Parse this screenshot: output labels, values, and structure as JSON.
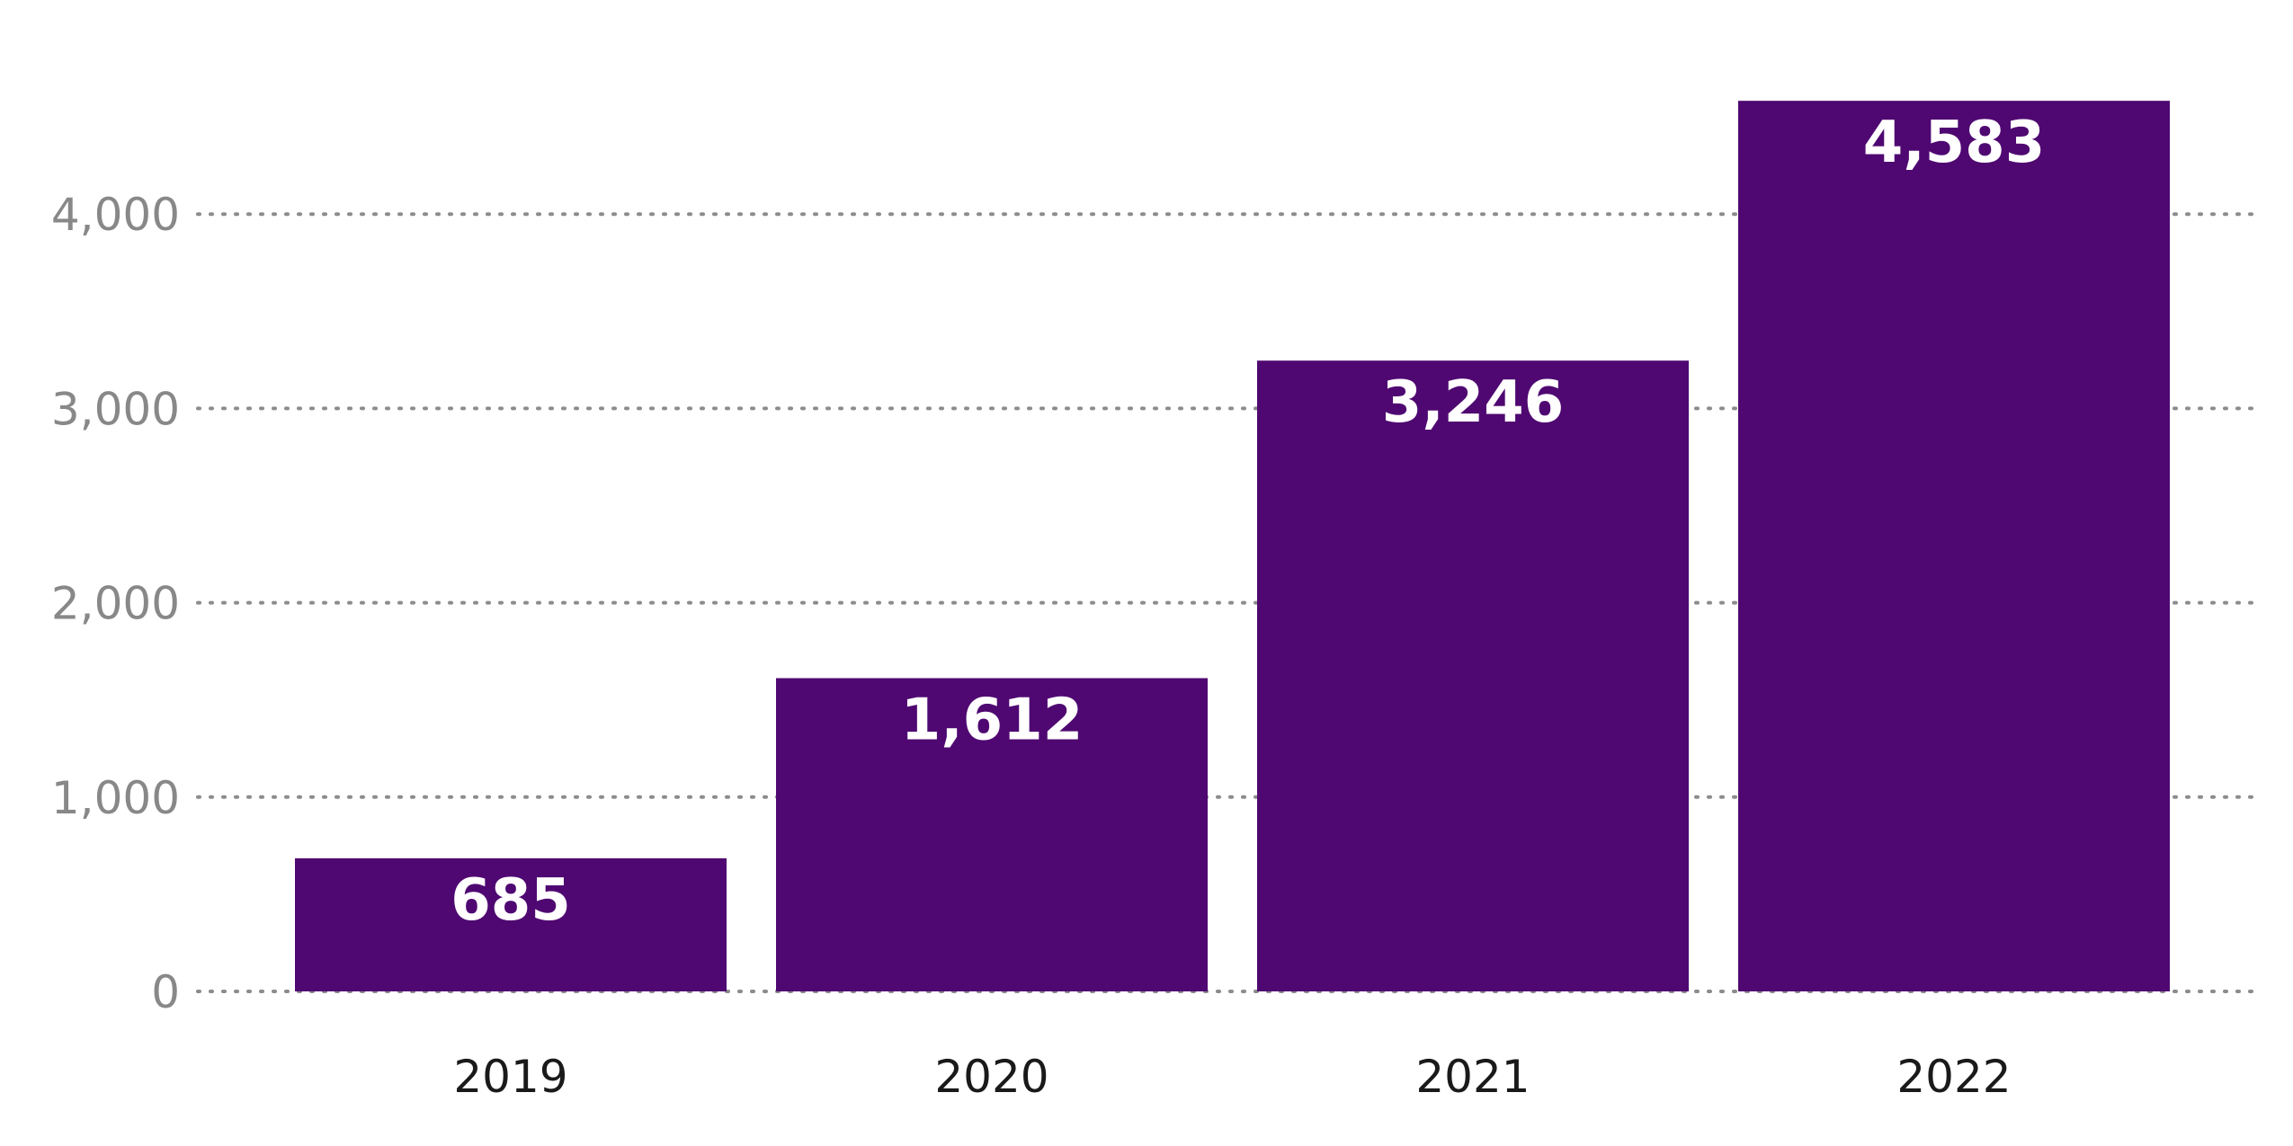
{
  "chart_data": {
    "type": "bar",
    "categories": [
      "2019",
      "2020",
      "2021",
      "2022"
    ],
    "values": [
      685,
      1612,
      3246,
      4583
    ],
    "data_labels": [
      "685",
      "1,612",
      "3,246",
      "4,583"
    ],
    "y_ticks": [
      0,
      1000,
      2000,
      3000,
      4000
    ],
    "y_tick_labels": [
      "0",
      "1,000",
      "2,000",
      "3,000",
      "4,000"
    ],
    "ylim": [
      0,
      4583
    ],
    "grid": "horizontal-dotted",
    "legend": "none",
    "colors": {
      "bar": "#4f0871",
      "label": "#ffffff",
      "ytick": "#888888",
      "xtick": "#1a1a1a",
      "grid": "#8c8c8c"
    }
  }
}
